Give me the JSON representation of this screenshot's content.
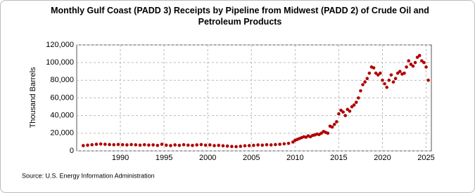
{
  "chart_data": {
    "type": "scatter",
    "title": "Monthly Gulf Coast (PADD 3) Receipts by Pipeline from Midwest (PADD 2) of Crude Oil and Petroleum Products",
    "y_label": "Thousand Barrels",
    "source": "Source: U.S. Energy Information Administration",
    "color": "#b00000",
    "grid": true,
    "xlim": [
      1985,
      2025.6
    ],
    "xticks": [
      1990,
      1995,
      2000,
      2005,
      2010,
      2015,
      2020,
      2025
    ],
    "ylim": [
      0,
      120000
    ],
    "yticks": [
      0,
      {
        "value": 20000,
        "label": "20,000"
      },
      {
        "value": 40000,
        "label": "40,000"
      },
      {
        "value": 60000,
        "label": "60,000"
      },
      {
        "value": 80000,
        "label": "80,000"
      },
      {
        "value": 100000,
        "label": "100,000"
      },
      {
        "value": 120000,
        "label": "120,000"
      }
    ],
    "x": [
      1985.75,
      1986.25,
      1986.75,
      1987.25,
      1987.75,
      1988.25,
      1988.75,
      1989.25,
      1989.75,
      1990.25,
      1990.75,
      1991.25,
      1991.75,
      1992.25,
      1992.75,
      1993.25,
      1993.75,
      1994.25,
      1994.75,
      1995.25,
      1995.75,
      1996.25,
      1996.75,
      1997.25,
      1997.75,
      1998.25,
      1998.75,
      1999.25,
      1999.75,
      2000.25,
      2000.75,
      2001.25,
      2001.75,
      2002.25,
      2002.75,
      2003.25,
      2003.75,
      2004.25,
      2004.75,
      2005.25,
      2005.75,
      2006.25,
      2006.75,
      2007.25,
      2007.75,
      2008.25,
      2008.75,
      2009.25,
      2009.75,
      2010,
      2010.25,
      2010.5,
      2010.75,
      2011,
      2011.25,
      2011.5,
      2011.75,
      2012,
      2012.25,
      2012.5,
      2012.75,
      2013,
      2013.25,
      2013.5,
      2013.75,
      2014,
      2014.25,
      2014.5,
      2014.75,
      2015,
      2015.25,
      2015.5,
      2015.75,
      2016,
      2016.25,
      2016.5,
      2016.75,
      2017,
      2017.25,
      2017.5,
      2017.75,
      2018,
      2018.25,
      2018.5,
      2018.75,
      2019,
      2019.25,
      2019.5,
      2019.75,
      2020,
      2020.25,
      2020.5,
      2020.75,
      2021,
      2021.25,
      2021.5,
      2021.75,
      2022,
      2022.25,
      2022.5,
      2022.75,
      2023,
      2023.25,
      2023.5,
      2023.75,
      2024,
      2024.25,
      2024.5,
      2024.75,
      2025,
      2025.25
    ],
    "values": [
      6000,
      6500,
      7000,
      7500,
      7800,
      7500,
      7200,
      7000,
      7300,
      7000,
      6800,
      7200,
      6900,
      6500,
      7000,
      6600,
      6800,
      6200,
      7500,
      6500,
      6000,
      6800,
      6300,
      7000,
      6500,
      6200,
      6800,
      7200,
      6500,
      6800,
      6000,
      6300,
      5800,
      5500,
      5000,
      4800,
      5200,
      5800,
      6000,
      6300,
      6800,
      6500,
      7000,
      6800,
      7200,
      7500,
      8000,
      8500,
      10000,
      12000,
      13000,
      14000,
      15000,
      16000,
      15500,
      17000,
      16000,
      17500,
      18000,
      19000,
      18500,
      20000,
      22000,
      21000,
      20000,
      28000,
      27000,
      30000,
      33000,
      42000,
      46000,
      44000,
      40000,
      47000,
      45000,
      50000,
      52000,
      55000,
      60000,
      68000,
      75000,
      78000,
      82000,
      88000,
      95000,
      94000,
      88000,
      86000,
      88000,
      80000,
      76000,
      72000,
      80000,
      86000,
      78000,
      82000,
      88000,
      90000,
      87000,
      88000,
      95000,
      102000,
      98000,
      96000,
      100000,
      106000,
      108000,
      102000,
      100000,
      95000,
      80000
    ]
  }
}
